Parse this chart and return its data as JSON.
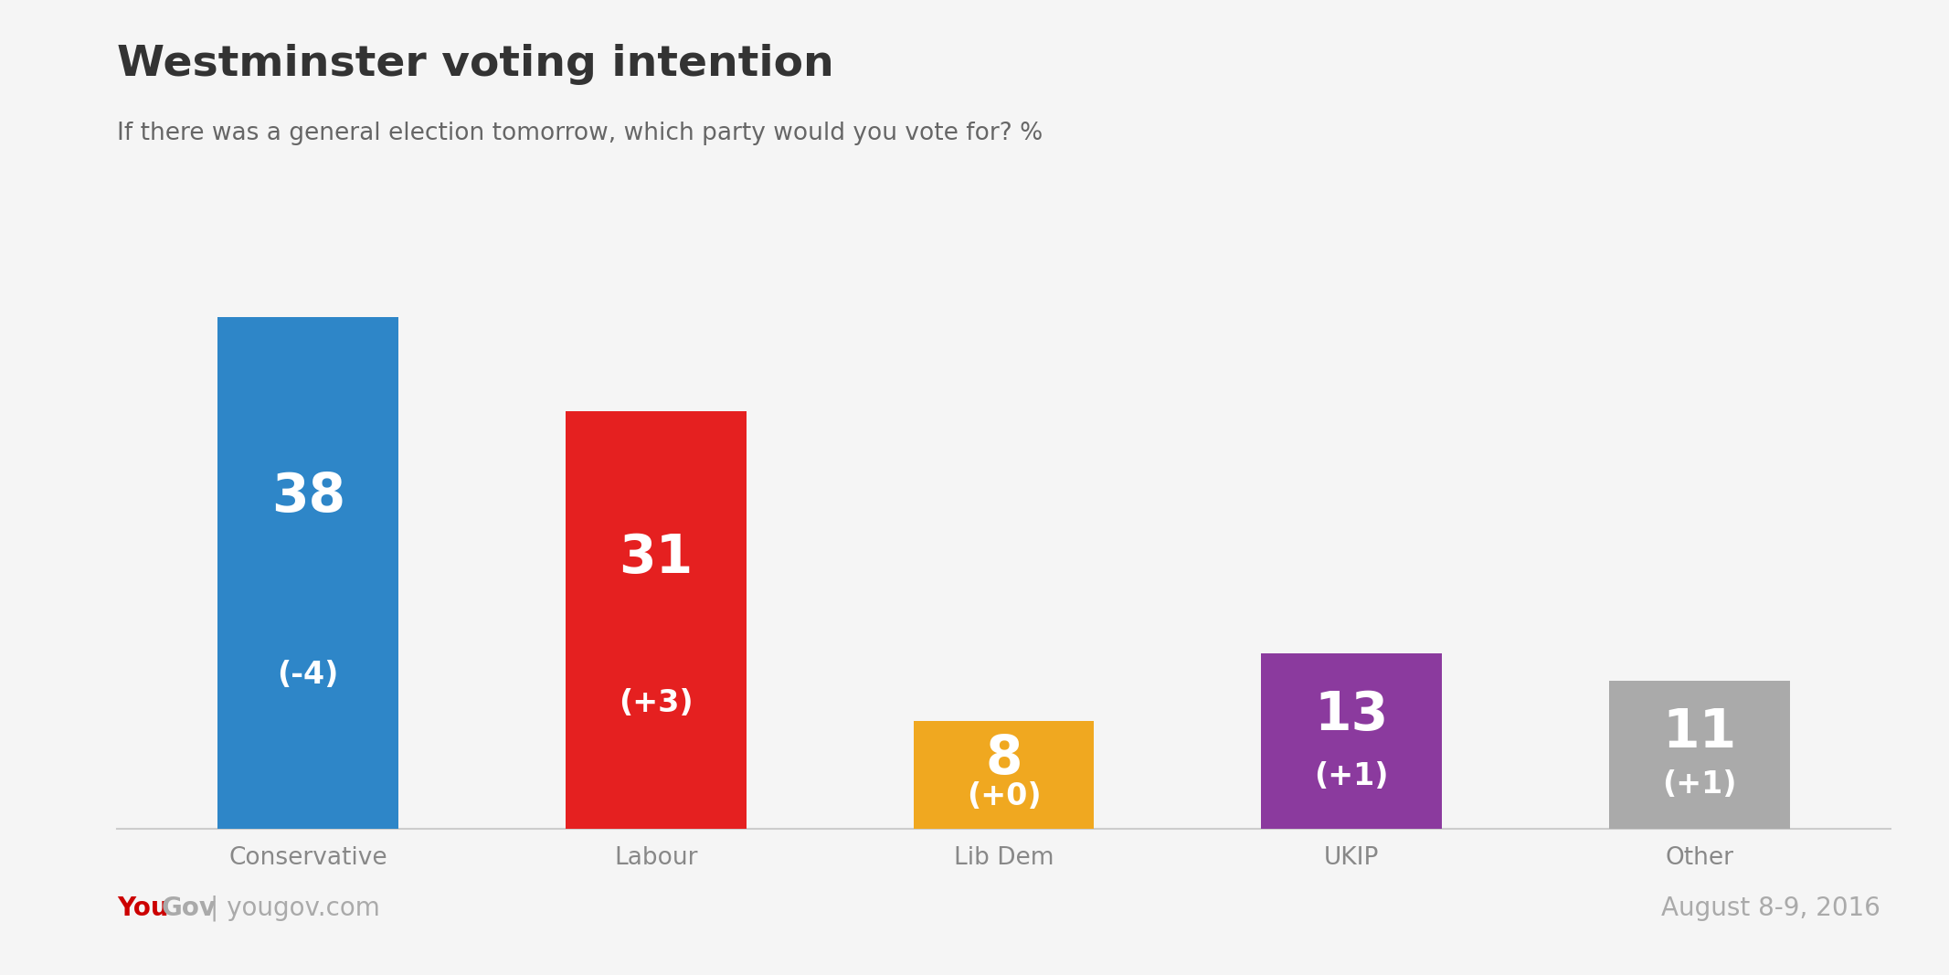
{
  "title": "Westminster voting intention",
  "subtitle": "If there was a general election tomorrow, which party would you vote for? %",
  "categories": [
    "Conservative",
    "Labour",
    "Lib Dem",
    "UKIP",
    "Other"
  ],
  "values": [
    38,
    31,
    8,
    13,
    11
  ],
  "changes": [
    "(-4)",
    "(+3)",
    "(+0)",
    "(+1)",
    "(+1)"
  ],
  "bar_colors": [
    "#2e86c8",
    "#e52020",
    "#f0a820",
    "#8b3a9e",
    "#aaaaaa"
  ],
  "background_color": "#f5f5f5",
  "text_color_white": "#ffffff",
  "title_color": "#333333",
  "subtitle_color": "#666666",
  "yougov_red": "#cc0000",
  "yougov_gray": "#aaaaaa",
  "footer_text": "yougov.com",
  "date_text": "August 8-9, 2016",
  "title_fontsize": 34,
  "subtitle_fontsize": 19,
  "label_fontsize_large": 42,
  "label_fontsize_small": 24,
  "tick_fontsize": 19,
  "footer_fontsize": 20,
  "ylim": [
    0,
    42
  ]
}
